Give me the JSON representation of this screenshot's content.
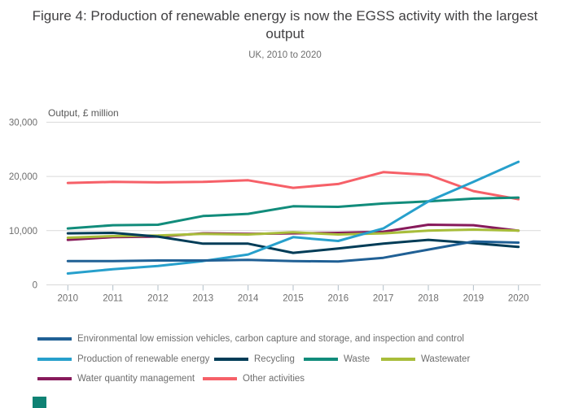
{
  "header": {
    "title": "Figure 4: Production of renewable energy is now the EGSS activity with the largest output",
    "subtitle": "UK, 2010 to 2020"
  },
  "chart_data": {
    "type": "line",
    "title": "Figure 4: Production of renewable energy is now the EGSS activity with the largest output",
    "subtitle": "UK, 2010 to 2020",
    "axis_label": "Output, £ million",
    "xlabel": "",
    "ylabel": "Output, £ million",
    "x": [
      2010,
      2011,
      2012,
      2013,
      2014,
      2015,
      2016,
      2017,
      2018,
      2019,
      2020
    ],
    "ylim": [
      0,
      30000
    ],
    "grid": true,
    "legend_position": "bottom",
    "y_ticks": [
      {
        "value": 0,
        "label": "0"
      },
      {
        "value": 10000,
        "label": "10,000"
      },
      {
        "value": 20000,
        "label": "20,000"
      },
      {
        "value": 30000,
        "label": "30,000"
      }
    ],
    "series": [
      {
        "name": "Environmental low emission vehicles, carbon capture and storage, and inspection and control",
        "color": "#206095",
        "values": [
          4400,
          4400,
          4500,
          4500,
          4600,
          4400,
          4300,
          5000,
          6500,
          8000,
          7800
        ]
      },
      {
        "name": "Production of renewable energy",
        "color": "#27A0CC",
        "values": [
          2100,
          2900,
          3500,
          4400,
          5600,
          8800,
          8100,
          10400,
          15400,
          19000,
          22700
        ]
      },
      {
        "name": "Recycling",
        "color": "#003C57",
        "values": [
          9500,
          9600,
          8900,
          7600,
          7600,
          5900,
          6700,
          7600,
          8300,
          7700,
          7000
        ]
      },
      {
        "name": "Waste",
        "color": "#118C7B",
        "values": [
          10400,
          11000,
          11100,
          12700,
          13100,
          14500,
          14400,
          15000,
          15400,
          15900,
          16100
        ]
      },
      {
        "name": "Wastewater",
        "color": "#A8BD3A",
        "values": [
          8700,
          9000,
          9100,
          9400,
          9300,
          9700,
          9300,
          9500,
          10000,
          10200,
          10000
        ]
      },
      {
        "name": "Water quantity management",
        "color": "#871A5B",
        "values": [
          8300,
          8800,
          8900,
          9500,
          9400,
          9500,
          9600,
          9800,
          11100,
          11000,
          10000
        ]
      },
      {
        "name": "Other activities",
        "color": "#F66068",
        "values": [
          18800,
          19000,
          18900,
          19000,
          19300,
          17900,
          18600,
          20800,
          20300,
          17300,
          15800
        ]
      }
    ],
    "legend_rows": [
      [
        {
          "series": 0,
          "x": 46
        }
      ],
      [
        {
          "series": 1,
          "x": 46
        },
        {
          "series": 2,
          "x": 263
        },
        {
          "series": 3,
          "x": 373
        },
        {
          "series": 4,
          "x": 468
        }
      ],
      [
        {
          "series": 5,
          "x": 46
        },
        {
          "series": 6,
          "x": 249
        }
      ]
    ]
  },
  "colors": {
    "gridline": "#d9d9d9",
    "tick": "#b0bec9",
    "axis_text": "#6e6e6e",
    "plot_label": "#595959",
    "brand_mark": "#0f8274"
  }
}
